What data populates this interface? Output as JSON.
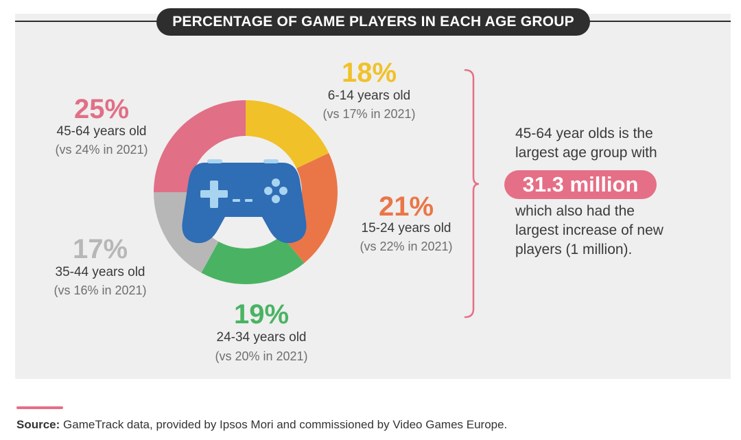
{
  "title": "PERCENTAGE OF GAME PLAYERS IN EACH AGE GROUP",
  "colors": {
    "pink": "#e16f86",
    "yellow": "#f0c129",
    "orange": "#ea7648",
    "green": "#4ab363",
    "gray": "#b7b7b7",
    "gamepad": "#2f6db5",
    "gamepad_light": "#a9d4f0"
  },
  "chart_data": {
    "type": "pie",
    "title": "PERCENTAGE OF GAME PLAYERS IN EACH AGE GROUP",
    "categories": [
      "6-14 years old",
      "15-24 years old",
      "24-34 years old",
      "35-44 years old",
      "45-64 years old"
    ],
    "values": [
      18,
      21,
      19,
      17,
      25
    ],
    "value_labels": [
      "18%",
      "21%",
      "19%",
      "17%",
      "25%"
    ],
    "comparisons": [
      "(vs 17% in 2021)",
      "(vs 22% in 2021)",
      "(vs 20% in 2021)",
      "(vs 16% in 2021)",
      "(vs 24% in 2021)"
    ],
    "colors": [
      "#f0c129",
      "#ea7648",
      "#4ab363",
      "#b7b7b7",
      "#e16f86"
    ],
    "donut": true
  },
  "callout": {
    "line1": "45-64 year olds is the",
    "line2": "largest age group with",
    "highlight": "31.3 million",
    "line3": "which also had the",
    "line4": "largest increase of new",
    "line5": "players (1 million)."
  },
  "source": {
    "label": "Source:",
    "text": "GameTrack data, provided by Ipsos Mori and commissioned by Video Games Europe."
  }
}
